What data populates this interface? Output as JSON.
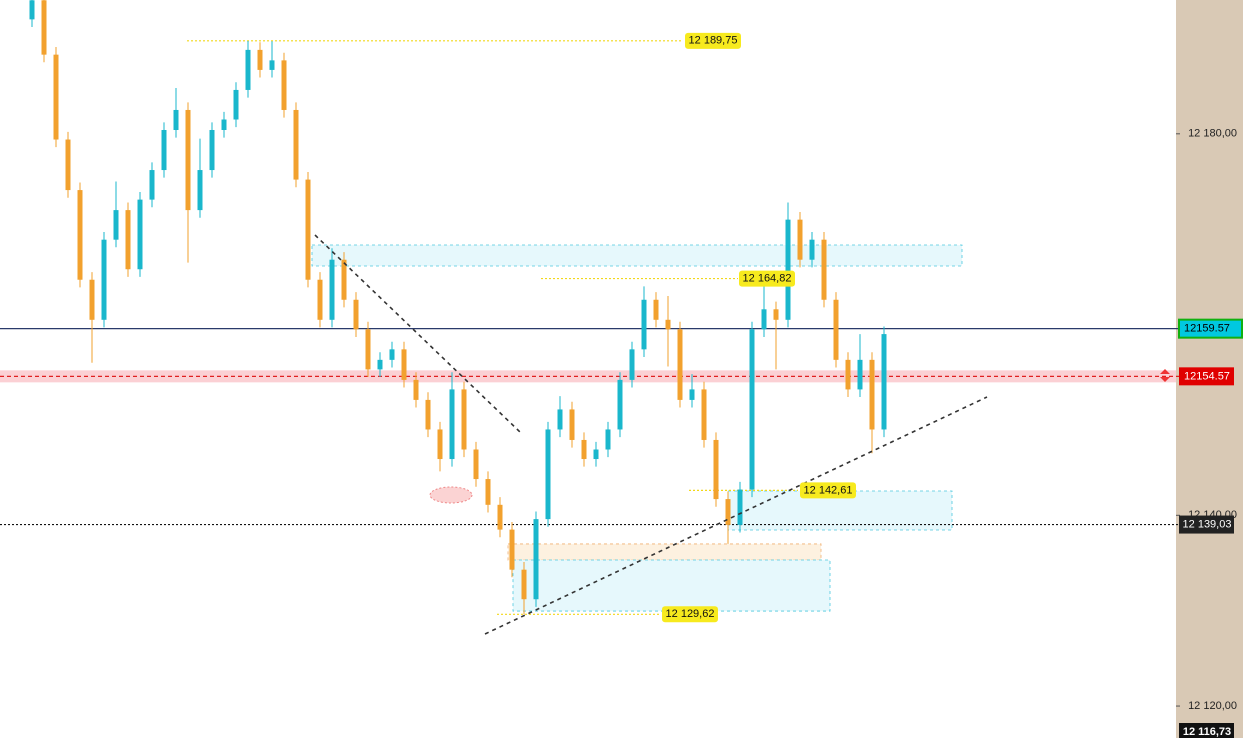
{
  "chart_data": {
    "type": "candlestick",
    "ylim": [
      12116.65,
      12194.03
    ],
    "yticks": [
      {
        "value": 12180,
        "label": "12 180,00"
      },
      {
        "value": 12140,
        "label": "12 140,00"
      },
      {
        "value": 12120,
        "label": "12 120,00"
      }
    ],
    "up_color": "#1ab7cc",
    "down_color": "#f2a12e",
    "candles": [
      [
        12192.0,
        12194.8,
        12191.2,
        12194.0
      ],
      [
        12194.0,
        12194.8,
        12187.5,
        12188.3
      ],
      [
        12188.3,
        12189.1,
        12178.6,
        12179.4
      ],
      [
        12179.4,
        12180.2,
        12173.3,
        12174.1
      ],
      [
        12174.1,
        12174.9,
        12163.9,
        12164.7
      ],
      [
        12164.7,
        12165.5,
        12156.0,
        12160.5
      ],
      [
        12160.5,
        12169.7,
        12159.7,
        12168.9
      ],
      [
        12168.9,
        12175.0,
        12168.1,
        12172.0
      ],
      [
        12172.0,
        12172.8,
        12165.0,
        12165.8
      ],
      [
        12165.8,
        12173.9,
        12165.0,
        12173.1
      ],
      [
        12173.1,
        12177.0,
        12172.3,
        12176.2
      ],
      [
        12176.2,
        12181.2,
        12175.4,
        12180.4
      ],
      [
        12180.4,
        12184.8,
        12179.6,
        12182.5
      ],
      [
        12182.5,
        12183.3,
        12166.5,
        12172.0
      ],
      [
        12172.0,
        12179.5,
        12171.2,
        12176.2
      ],
      [
        12176.2,
        12181.2,
        12175.4,
        12180.4
      ],
      [
        12180.4,
        12182.3,
        12179.6,
        12181.5
      ],
      [
        12181.5,
        12185.4,
        12180.7,
        12184.6
      ],
      [
        12184.6,
        12189.75,
        12183.8,
        12188.8
      ],
      [
        12188.8,
        12189.6,
        12185.9,
        12186.7
      ],
      [
        12186.7,
        12189.7,
        12185.9,
        12187.7
      ],
      [
        12187.7,
        12188.5,
        12181.7,
        12182.5
      ],
      [
        12182.5,
        12183.3,
        12174.4,
        12175.2
      ],
      [
        12175.2,
        12176.0,
        12163.9,
        12164.7
      ],
      [
        12164.7,
        12165.5,
        12159.7,
        12160.5
      ],
      [
        12160.5,
        12168.0,
        12159.7,
        12166.8
      ],
      [
        12166.8,
        12167.6,
        12161.8,
        12162.6
      ],
      [
        12162.6,
        12163.4,
        12158.7,
        12159.5
      ],
      [
        12159.5,
        12160.3,
        12154.5,
        12155.3
      ],
      [
        12155.3,
        12157.1,
        12154.5,
        12156.3
      ],
      [
        12156.3,
        12158.2,
        12155.5,
        12157.4
      ],
      [
        12157.4,
        12158.2,
        12153.4,
        12154.2
      ],
      [
        12154.2,
        12155.0,
        12151.3,
        12152.1
      ],
      [
        12152.1,
        12152.9,
        12148.2,
        12149.0
      ],
      [
        12149.0,
        12149.8,
        12144.6,
        12145.9
      ],
      [
        12145.9,
        12155.0,
        12145.1,
        12153.2
      ],
      [
        12153.2,
        12154.0,
        12146.1,
        12146.9
      ],
      [
        12146.9,
        12147.7,
        12143.0,
        12143.8
      ],
      [
        12143.8,
        12144.6,
        12140.3,
        12141.1
      ],
      [
        12141.1,
        12141.9,
        12137.7,
        12138.5
      ],
      [
        12138.5,
        12139.3,
        12133.5,
        12134.3
      ],
      [
        12134.3,
        12135.1,
        12129.62,
        12131.2
      ],
      [
        12131.2,
        12140.4,
        12130.4,
        12139.6
      ],
      [
        12139.6,
        12149.8,
        12138.8,
        12149.0
      ],
      [
        12149.0,
        12152.5,
        12148.2,
        12151.1
      ],
      [
        12151.1,
        12151.9,
        12147.1,
        12147.9
      ],
      [
        12147.9,
        12148.7,
        12145.1,
        12145.9
      ],
      [
        12145.9,
        12147.7,
        12145.1,
        12146.9
      ],
      [
        12146.9,
        12149.8,
        12146.1,
        12149.0
      ],
      [
        12149.0,
        12155.0,
        12148.2,
        12154.2
      ],
      [
        12154.2,
        12158.2,
        12153.4,
        12157.4
      ],
      [
        12157.4,
        12164.0,
        12156.6,
        12162.6
      ],
      [
        12162.6,
        12163.4,
        12159.7,
        12160.5
      ],
      [
        12160.5,
        12163.0,
        12155.6,
        12159.5
      ],
      [
        12159.5,
        12160.3,
        12151.3,
        12152.1
      ],
      [
        12152.1,
        12154.8,
        12151.3,
        12153.2
      ],
      [
        12153.2,
        12154.0,
        12147.1,
        12147.9
      ],
      [
        12147.9,
        12148.7,
        12140.9,
        12141.7
      ],
      [
        12141.7,
        12142.5,
        12137.0,
        12139.0
      ],
      [
        12139.0,
        12143.5,
        12138.2,
        12142.7
      ],
      [
        12142.7,
        12160.3,
        12141.9,
        12159.5
      ],
      [
        12159.5,
        12164.0,
        12158.7,
        12161.6
      ],
      [
        12161.6,
        12162.4,
        12155.3,
        12160.5
      ],
      [
        12160.5,
        12172.8,
        12159.7,
        12171.0
      ],
      [
        12171.0,
        12171.8,
        12166.0,
        12166.8
      ],
      [
        12166.8,
        12169.7,
        12166.0,
        12168.9
      ],
      [
        12168.9,
        12169.7,
        12161.8,
        12162.6
      ],
      [
        12162.6,
        12163.4,
        12155.5,
        12156.3
      ],
      [
        12156.3,
        12157.1,
        12152.4,
        12153.2
      ],
      [
        12153.2,
        12159.0,
        12152.4,
        12156.3
      ],
      [
        12156.3,
        12157.1,
        12146.5,
        12149.0
      ],
      [
        12149.0,
        12159.8,
        12148.2,
        12159.0
      ]
    ],
    "levels": [
      {
        "value": 12189.75,
        "label": "12 189,75"
      },
      {
        "value": 12164.82,
        "label": "12 164,82"
      },
      {
        "value": 12142.61,
        "label": "12 142,61"
      },
      {
        "value": 12129.62,
        "label": "12 129,62"
      }
    ],
    "zones": [
      {
        "low": 12166.14,
        "high": 12168.34,
        "color": "#e6f8fc"
      },
      {
        "low": 12138.46,
        "high": 12142.55,
        "color": "#e6f8fc"
      },
      {
        "low": 12135.3,
        "high": 12137.0,
        "color": "#fdf1e0"
      },
      {
        "low": 12129.96,
        "high": 12135.31,
        "color": "#e6f8fc"
      }
    ],
    "price_lines": [
      {
        "value": 12159.57,
        "label": "12159.57"
      },
      {
        "value": 12154.57,
        "label": "12154.57"
      },
      {
        "value": 12139.03,
        "label": "12 139,03"
      },
      {
        "value": 12116.73,
        "label": "12 116,73"
      }
    ]
  }
}
